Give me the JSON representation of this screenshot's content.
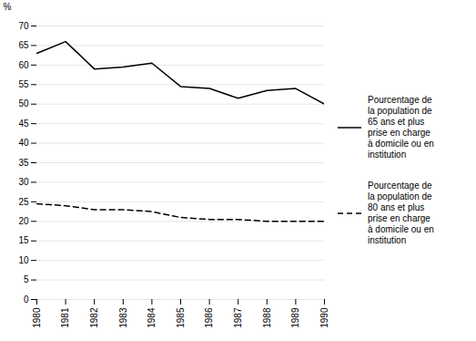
{
  "chart_data": {
    "type": "line",
    "x": [
      1980,
      1981,
      1982,
      1983,
      1984,
      1985,
      1986,
      1987,
      1988,
      1989,
      1990
    ],
    "series": [
      {
        "name": "Pourcentage de\nla population de\n65 ans et plus\nprise en charge\nà domicile ou en\ninstitution",
        "color": "#000000",
        "line_style": "solid",
        "values": [
          63,
          66,
          59,
          59.5,
          60.5,
          54.5,
          54,
          51.5,
          53.5,
          54,
          50
        ]
      },
      {
        "name": "Pourcentage de\nla population de\n80 ans et plus\nprise en charge\nà domicile ou en\ninstitution",
        "color": "#000000",
        "line_style": "dashed",
        "values": [
          24.5,
          24,
          23,
          23,
          22.5,
          21,
          20.5,
          20.5,
          20,
          20,
          20
        ]
      }
    ],
    "ylabel": "%",
    "xlim": [
      1980,
      1990
    ],
    "xticks": [
      1980,
      1981,
      1982,
      1983,
      1984,
      1985,
      1986,
      1987,
      1988,
      1989,
      1990
    ],
    "ylim": [
      0,
      70
    ],
    "yticks": [
      0,
      5,
      10,
      15,
      20,
      25,
      30,
      35,
      40,
      45,
      50,
      55,
      60,
      65,
      70
    ],
    "grid": true,
    "legend": "right"
  }
}
